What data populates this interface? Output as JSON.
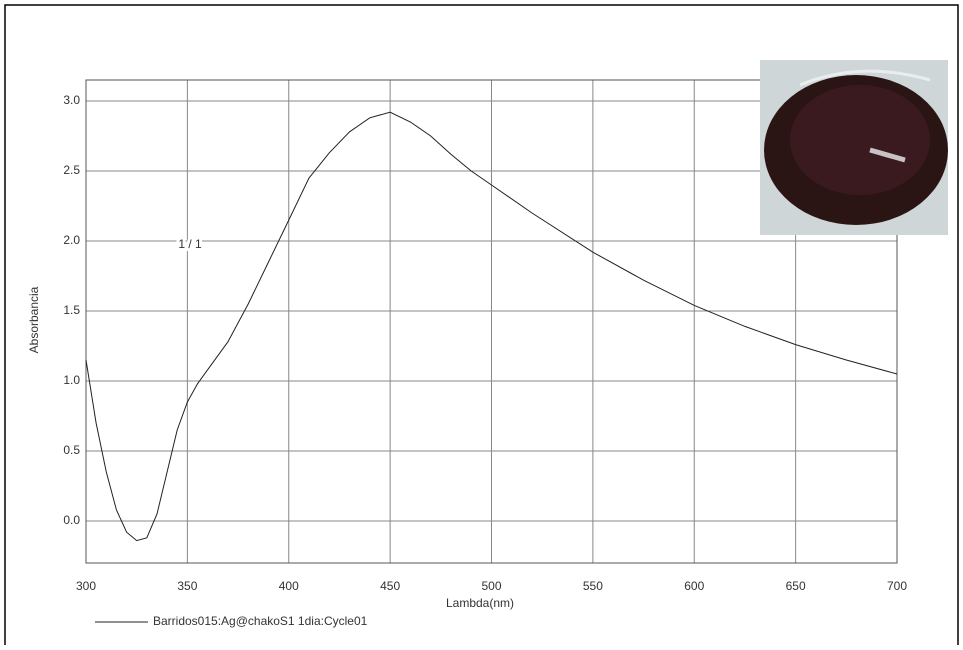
{
  "chart_data": {
    "type": "line",
    "x_label": "Lambda(nm)",
    "y_label": "Absorbancia",
    "annotation": "1 / 1",
    "x": [
      300,
      305,
      310,
      315,
      320,
      325,
      330,
      335,
      340,
      345,
      350,
      355,
      360,
      370,
      380,
      390,
      400,
      410,
      420,
      430,
      440,
      450,
      460,
      470,
      480,
      490,
      500,
      520,
      550,
      575,
      600,
      625,
      650,
      675,
      700
    ],
    "series": [
      {
        "name": "Barridos015:Ag@chakoS1 1dia:Cycle01",
        "color": "#222222",
        "values": [
          1.15,
          0.7,
          0.35,
          0.08,
          -0.08,
          -0.14,
          -0.12,
          0.05,
          0.35,
          0.65,
          0.85,
          0.98,
          1.08,
          1.28,
          1.55,
          1.85,
          2.15,
          2.45,
          2.63,
          2.78,
          2.88,
          2.92,
          2.85,
          2.75,
          2.62,
          2.5,
          2.4,
          2.2,
          1.92,
          1.72,
          1.54,
          1.39,
          1.26,
          1.15,
          1.05
        ]
      }
    ],
    "xlim": [
      300,
      700
    ],
    "xticks": [
      300,
      350,
      400,
      450,
      500,
      550,
      600,
      650,
      700
    ],
    "ylim": [
      -0.3,
      3.15
    ],
    "yticks": [
      {
        "value": 0,
        "label": "0.0"
      },
      0.5,
      {
        "value": 1,
        "label": "1.0"
      },
      1.5,
      {
        "value": 2,
        "label": "2.0"
      },
      2.5,
      {
        "value": 3,
        "label": "3.0"
      }
    ],
    "grid": true
  }
}
